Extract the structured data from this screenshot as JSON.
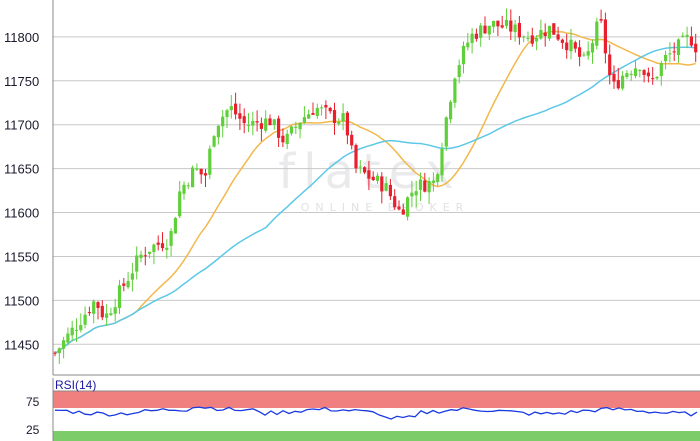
{
  "chart_data": [
    {
      "type": "candlestick",
      "y_ticks": [
        11450,
        11500,
        11550,
        11600,
        11650,
        11700,
        11750,
        11800
      ],
      "ylim": [
        11415,
        11842
      ],
      "grid": true,
      "up_color": "#5fcf3a",
      "down_color": "#e8202e",
      "series": [
        {
          "name": "",
          "kind": "moving-average",
          "color": "#f2b84b"
        },
        {
          "name": "",
          "kind": "moving-average",
          "color": "#5cc8e8"
        }
      ]
    },
    {
      "type": "line",
      "label": "RSI(14)",
      "y_ticks": [
        25,
        75
      ],
      "overbought_color": "#f08080",
      "oversold_color": "#7ccd6a",
      "line_color": "#1a3ae0"
    }
  ],
  "watermark": {
    "main": "flatex",
    "sub": "ONLINE BROKER"
  }
}
